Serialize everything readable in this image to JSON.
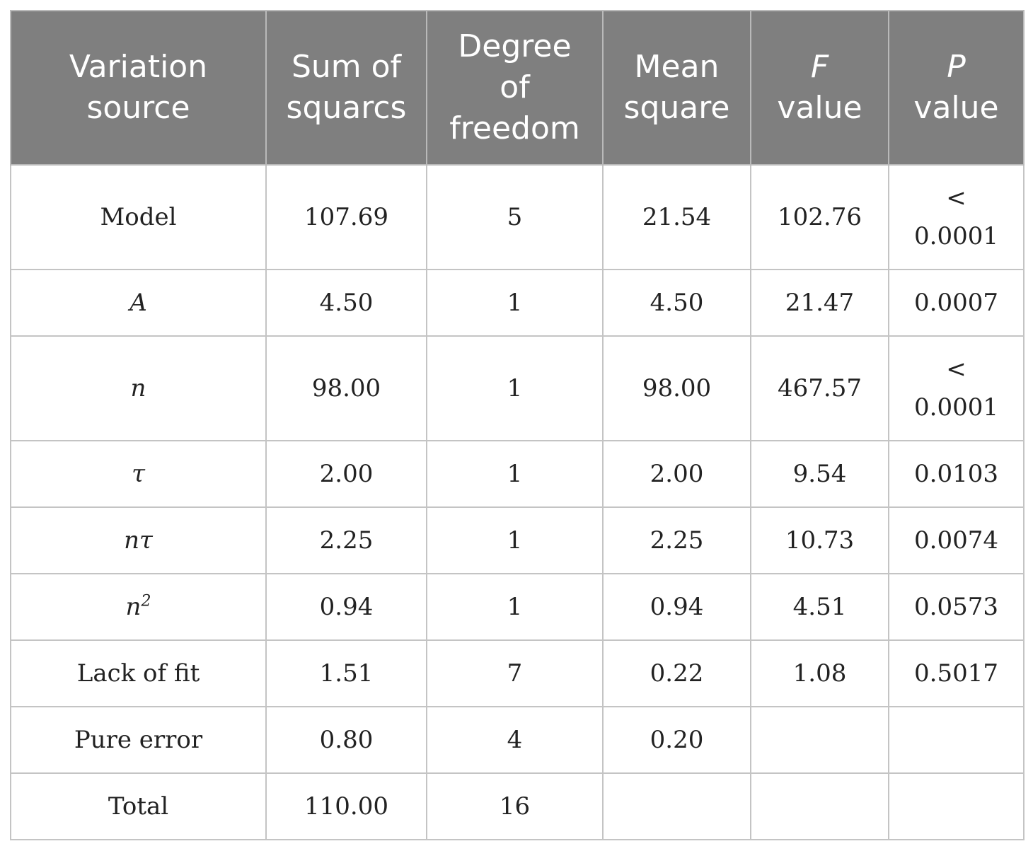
{
  "table": {
    "headers": [
      {
        "line1": "Variation",
        "line1_italic": false,
        "line2": "source",
        "line3": ""
      },
      {
        "line1": "Sum of",
        "line1_italic": false,
        "line2": "squarcs",
        "line3": ""
      },
      {
        "line1": "Degree",
        "line1_italic": false,
        "line2": "of",
        "line3": "freedom"
      },
      {
        "line1": "Mean",
        "line1_italic": false,
        "line2": "square",
        "line3": ""
      },
      {
        "line1": "F",
        "line1_italic": true,
        "line2": "value",
        "line3": ""
      },
      {
        "line1": "P",
        "line1_italic": true,
        "line2": "value",
        "line3": ""
      }
    ],
    "rows": [
      {
        "source": "Model",
        "source_sup": "",
        "source_italic": false,
        "ss": "107.69",
        "df": "5",
        "ms": "21.54",
        "f": "102.76",
        "p_line1": "<",
        "p_line2": "0.0001"
      },
      {
        "source": "A",
        "source_sup": "",
        "source_italic": true,
        "ss": "4.50",
        "df": "1",
        "ms": "4.50",
        "f": "21.47",
        "p_line1": "0.0007",
        "p_line2": ""
      },
      {
        "source": "n",
        "source_sup": "",
        "source_italic": true,
        "ss": "98.00",
        "df": "1",
        "ms": "98.00",
        "f": "467.57",
        "p_line1": "<",
        "p_line2": "0.0001"
      },
      {
        "source": "τ",
        "source_sup": "",
        "source_italic": true,
        "ss": "2.00",
        "df": "1",
        "ms": "2.00",
        "f": "9.54",
        "p_line1": "0.0103",
        "p_line2": ""
      },
      {
        "source": "nτ",
        "source_sup": "",
        "source_italic": true,
        "ss": "2.25",
        "df": "1",
        "ms": "2.25",
        "f": "10.73",
        "p_line1": "0.0074",
        "p_line2": ""
      },
      {
        "source": "n",
        "source_sup": "2",
        "source_italic": true,
        "ss": "0.94",
        "df": "1",
        "ms": "0.94",
        "f": "4.51",
        "p_line1": "0.0573",
        "p_line2": ""
      },
      {
        "source": "Lack of fit",
        "source_sup": "",
        "source_italic": false,
        "ss": "1.51",
        "df": "7",
        "ms": "0.22",
        "f": "1.08",
        "p_line1": "0.5017",
        "p_line2": ""
      },
      {
        "source": "Pure error",
        "source_sup": "",
        "source_italic": false,
        "ss": "0.80",
        "df": "4",
        "ms": "0.20",
        "f": "",
        "p_line1": "",
        "p_line2": ""
      },
      {
        "source": "Total",
        "source_sup": "",
        "source_italic": false,
        "ss": "110.00",
        "df": "16",
        "ms": "",
        "f": "",
        "p_line1": "",
        "p_line2": ""
      }
    ]
  }
}
